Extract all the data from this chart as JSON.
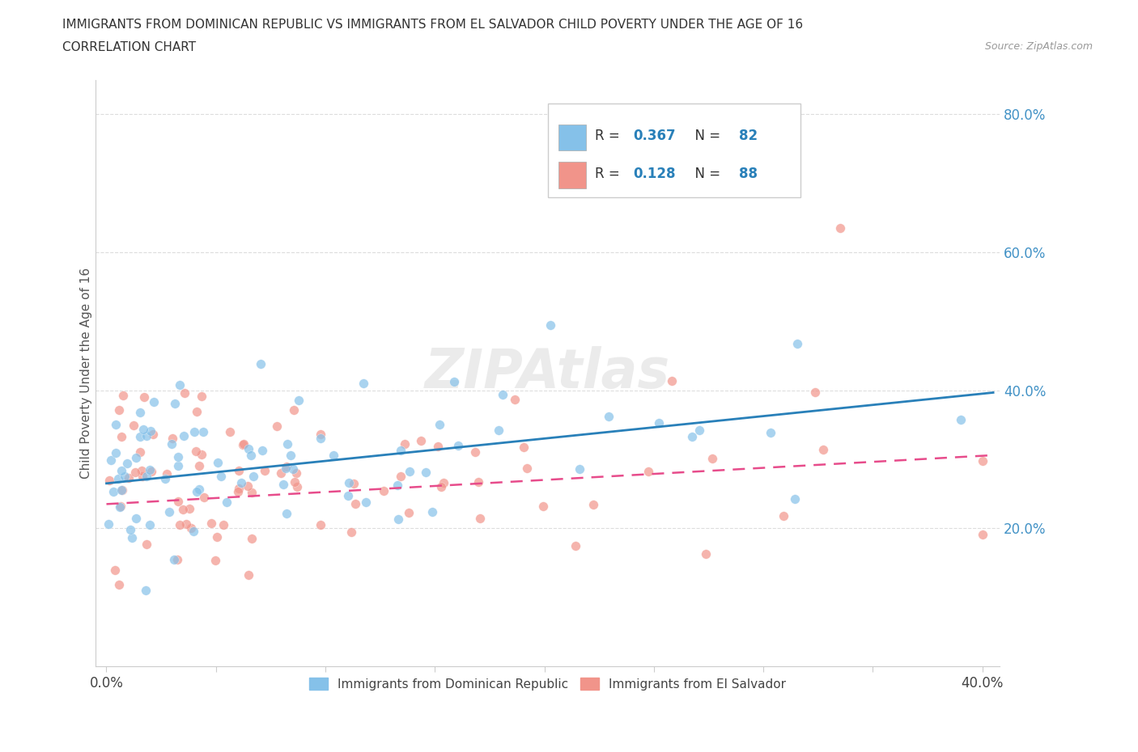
{
  "title_line1": "IMMIGRANTS FROM DOMINICAN REPUBLIC VS IMMIGRANTS FROM EL SALVADOR CHILD POVERTY UNDER THE AGE OF 16",
  "title_line2": "CORRELATION CHART",
  "source_text": "Source: ZipAtlas.com",
  "ylabel": "Child Poverty Under the Age of 16",
  "blue_color": "#85C1E9",
  "pink_color": "#F1948A",
  "blue_line_color": "#2980B9",
  "pink_line_color": "#E74C8B",
  "R_blue": 0.367,
  "N_blue": 82,
  "R_pink": 0.128,
  "N_pink": 88,
  "legend_label_blue": "Immigrants from Dominican Republic",
  "legend_label_pink": "Immigrants from El Salvador",
  "watermark": "ZIPAtlas",
  "grid_color": "#DDDDDD",
  "axis_color": "#CCCCCC",
  "tick_label_color": "#4292C6",
  "title_color": "#333333",
  "source_color": "#999999"
}
